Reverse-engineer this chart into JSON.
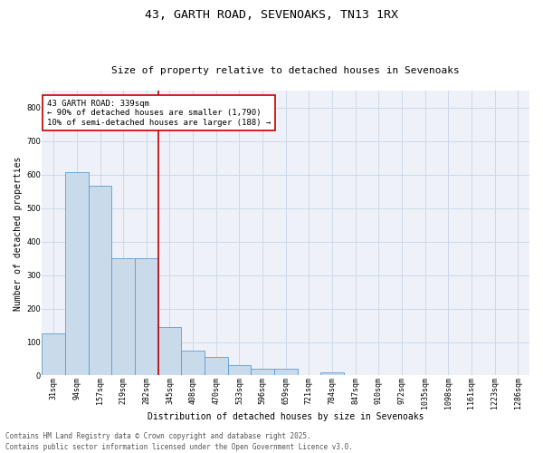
{
  "title_line1": "43, GARTH ROAD, SEVENOAKS, TN13 1RX",
  "title_line2": "Size of property relative to detached houses in Sevenoaks",
  "xlabel": "Distribution of detached houses by size in Sevenoaks",
  "ylabel": "Number of detached properties",
  "categories": [
    "31sqm",
    "94sqm",
    "157sqm",
    "219sqm",
    "282sqm",
    "345sqm",
    "408sqm",
    "470sqm",
    "533sqm",
    "596sqm",
    "659sqm",
    "721sqm",
    "784sqm",
    "847sqm",
    "910sqm",
    "972sqm",
    "1035sqm",
    "1098sqm",
    "1161sqm",
    "1223sqm",
    "1286sqm"
  ],
  "values": [
    125,
    608,
    568,
    350,
    350,
    145,
    75,
    55,
    30,
    20,
    20,
    0,
    10,
    0,
    0,
    0,
    0,
    0,
    0,
    0,
    0
  ],
  "bar_color": "#c9daea",
  "bar_edge_color": "#5b9bd5",
  "vline_color": "#c00000",
  "vline_x": 4.5,
  "annotation_text": "43 GARTH ROAD: 339sqm\n← 90% of detached houses are smaller (1,790)\n10% of semi-detached houses are larger (188) →",
  "annotation_box_color": "#c00000",
  "ylim": [
    0,
    850
  ],
  "yticks": [
    0,
    100,
    200,
    300,
    400,
    500,
    600,
    700,
    800
  ],
  "grid_color": "#ced8e8",
  "background_color": "#eef2f8",
  "footer_line1": "Contains HM Land Registry data © Crown copyright and database right 2025.",
  "footer_line2": "Contains public sector information licensed under the Open Government Licence v3.0.",
  "title_fontsize": 9.5,
  "subtitle_fontsize": 8,
  "axis_label_fontsize": 7,
  "tick_fontsize": 6,
  "annotation_fontsize": 6.5,
  "footer_fontsize": 5.5
}
